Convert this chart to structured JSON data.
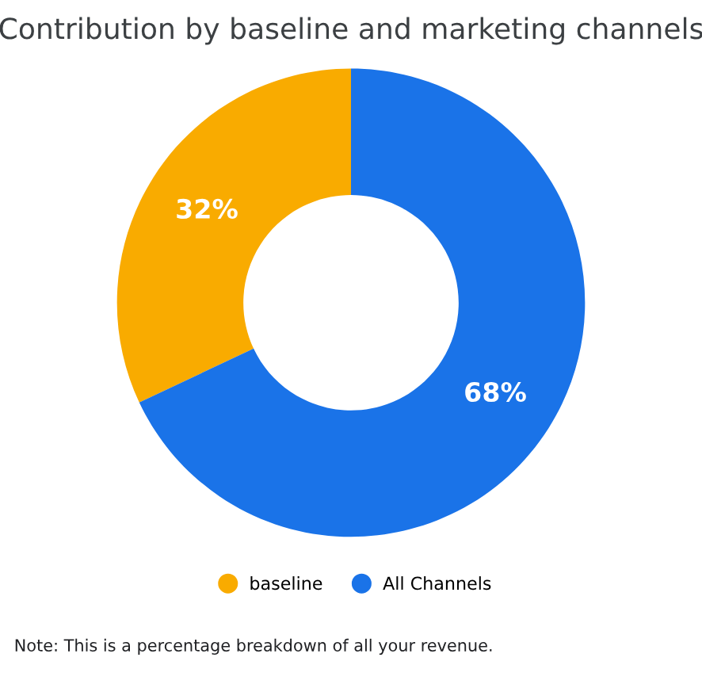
{
  "chart_data": {
    "type": "donut",
    "title": "Contribution by baseline and marketing channels",
    "categories": [
      "baseline",
      "All Channels"
    ],
    "values": [
      32,
      68
    ],
    "value_labels": [
      "32%",
      "68%"
    ],
    "colors": [
      "#f9ab00",
      "#1a73e8"
    ],
    "legend": "bottom",
    "annotations": [
      "Note: This is a percentage breakdown of all your revenue."
    ]
  }
}
